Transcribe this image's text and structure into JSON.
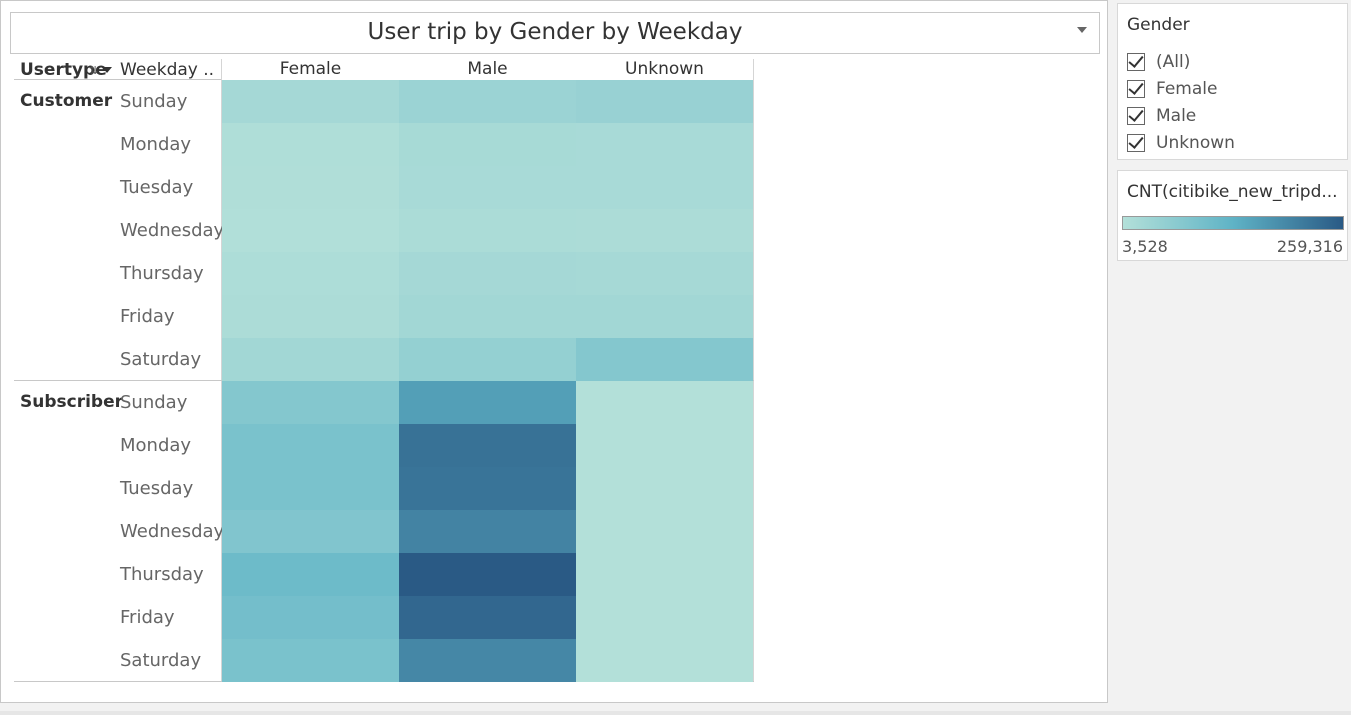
{
  "title": "User trip by Gender by Weekday",
  "row_headers": {
    "usertype": "Usertype",
    "weekday": "Weekday .."
  },
  "chart_data": {
    "type": "heatmap",
    "title": "User trip by Gender by Weekday",
    "columns": [
      "Female",
      "Male",
      "Unknown"
    ],
    "groups": [
      {
        "name": "Customer",
        "rows": [
          "Sunday",
          "Monday",
          "Tuesday",
          "Wednesday",
          "Thursday",
          "Friday",
          "Saturday"
        ],
        "values": [
          [
            25000,
            40000,
            45000
          ],
          [
            10000,
            22000,
            20000
          ],
          [
            8000,
            20000,
            20000
          ],
          [
            6000,
            15000,
            14000
          ],
          [
            12000,
            25000,
            24000
          ],
          [
            14000,
            30000,
            30000
          ],
          [
            30000,
            50000,
            75000
          ]
        ]
      },
      {
        "name": "Subscriber",
        "rows": [
          "Sunday",
          "Monday",
          "Tuesday",
          "Wednesday",
          "Thursday",
          "Friday",
          "Saturday"
        ],
        "values": [
          [
            75000,
            160000,
            3528
          ],
          [
            90000,
            225000,
            3900
          ],
          [
            90000,
            222000,
            3800
          ],
          [
            80000,
            200000,
            3700
          ],
          [
            110000,
            259316,
            4200
          ],
          [
            100000,
            240000,
            4000
          ],
          [
            90000,
            195000,
            3600
          ]
        ]
      }
    ],
    "color_legend": {
      "title": "CNT(citibike_new_tripd...",
      "min": 3528,
      "max": 259316,
      "min_label": "3,528",
      "max_label": "259,316"
    },
    "colors": {
      "low": "#b3e0d9",
      "mid": "#5fb3c6",
      "high": "#2a5a85"
    }
  },
  "filter": {
    "title": "Gender",
    "items": [
      {
        "label": "(All)",
        "checked": true
      },
      {
        "label": "Female",
        "checked": true
      },
      {
        "label": "Male",
        "checked": true
      },
      {
        "label": "Unknown",
        "checked": true
      }
    ]
  }
}
